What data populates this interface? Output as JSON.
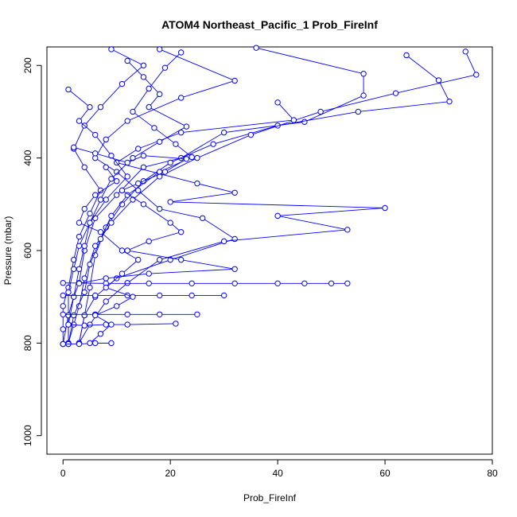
{
  "chart_data": {
    "type": "scatter",
    "title": "ATOM4 Northeast_Pacific_1 Prob_FireInf",
    "xlabel": "Prob_FireInf",
    "ylabel": "Pressure (mbar)",
    "xlim": [
      -3,
      80
    ],
    "ylim": [
      1040,
      160
    ],
    "y_reversed": true,
    "x_ticks": [
      0,
      20,
      40,
      60,
      80
    ],
    "y_ticks": [
      200,
      400,
      600,
      800,
      1000
    ],
    "grid": false,
    "marker": "open-circle",
    "color": "#0000ff",
    "series": [
      {
        "points": [
          [
            36,
            162
          ],
          [
            56,
            218
          ],
          [
            56,
            265
          ],
          [
            45,
            322
          ],
          [
            30,
            345
          ],
          [
            22,
            400
          ],
          [
            15,
            420
          ],
          [
            10,
            480
          ],
          [
            6,
            530
          ],
          [
            4,
            600
          ],
          [
            3,
            670
          ],
          [
            2,
            700
          ],
          [
            1,
            740
          ],
          [
            1,
            800
          ]
        ]
      },
      {
        "points": [
          [
            64,
            178
          ],
          [
            70,
            232
          ],
          [
            72,
            278
          ],
          [
            55,
            300
          ],
          [
            40,
            330
          ],
          [
            28,
            370
          ],
          [
            20,
            410
          ],
          [
            15,
            450
          ],
          [
            11,
            500
          ],
          [
            8,
            550
          ],
          [
            6,
            610
          ],
          [
            5,
            680
          ],
          [
            4,
            740
          ],
          [
            3,
            800
          ]
        ]
      },
      {
        "points": [
          [
            75,
            170
          ],
          [
            77,
            220
          ],
          [
            62,
            260
          ],
          [
            48,
            300
          ],
          [
            35,
            350
          ],
          [
            25,
            400
          ],
          [
            18,
            440
          ],
          [
            13,
            490
          ],
          [
            9,
            540
          ],
          [
            6,
            590
          ],
          [
            4,
            660
          ],
          [
            3,
            720
          ],
          [
            2,
            760
          ],
          [
            1,
            800
          ]
        ]
      },
      {
        "points": [
          [
            18,
            165
          ],
          [
            32,
            233
          ],
          [
            22,
            270
          ],
          [
            12,
            320
          ],
          [
            8,
            360
          ],
          [
            6,
            400
          ],
          [
            10,
            430
          ],
          [
            14,
            470
          ],
          [
            18,
            510
          ],
          [
            26,
            530
          ],
          [
            32,
            575
          ],
          [
            20,
            620
          ],
          [
            10,
            660
          ],
          [
            6,
            700
          ],
          [
            4,
            740
          ],
          [
            3,
            800
          ]
        ]
      },
      {
        "points": [
          [
            40,
            280
          ],
          [
            43,
            318
          ],
          [
            22,
            345
          ],
          [
            14,
            380
          ],
          [
            10,
            410
          ],
          [
            25,
            455
          ],
          [
            32,
            475
          ],
          [
            20,
            495
          ],
          [
            60,
            508
          ],
          [
            40,
            525
          ],
          [
            53,
            555
          ],
          [
            30,
            580
          ],
          [
            18,
            620
          ],
          [
            12,
            670
          ],
          [
            8,
            710
          ],
          [
            5,
            760
          ],
          [
            3,
            800
          ]
        ]
      },
      {
        "points": [
          [
            9,
            165
          ],
          [
            15,
            200
          ],
          [
            11,
            240
          ],
          [
            7,
            290
          ],
          [
            4,
            330
          ],
          [
            2,
            380
          ],
          [
            4,
            420
          ],
          [
            7,
            470
          ],
          [
            5,
            520
          ],
          [
            3,
            570
          ],
          [
            2,
            620
          ],
          [
            1,
            680
          ],
          [
            0,
            720
          ],
          [
            0,
            770
          ],
          [
            0,
            802
          ]
        ]
      },
      {
        "points": [
          [
            22,
            172
          ],
          [
            19,
            205
          ],
          [
            16,
            250
          ],
          [
            13,
            300
          ],
          [
            17,
            335
          ],
          [
            21,
            370
          ],
          [
            24,
            398
          ],
          [
            18,
            430
          ],
          [
            12,
            480
          ],
          [
            9,
            525
          ],
          [
            7,
            575
          ],
          [
            5,
            630
          ],
          [
            4,
            690
          ],
          [
            2,
            740
          ],
          [
            1,
            802
          ]
        ]
      },
      {
        "points": [
          [
            1,
            252
          ],
          [
            5,
            290
          ],
          [
            3,
            320
          ],
          [
            6,
            350
          ],
          [
            9,
            395
          ],
          [
            12,
            440
          ],
          [
            8,
            490
          ],
          [
            5,
            540
          ],
          [
            3,
            590
          ],
          [
            2,
            640
          ],
          [
            1,
            690
          ],
          [
            1,
            740
          ],
          [
            0,
            802
          ]
        ]
      },
      {
        "points": [
          [
            12,
            190
          ],
          [
            15,
            225
          ],
          [
            18,
            262
          ],
          [
            16,
            290
          ],
          [
            23,
            332
          ],
          [
            18,
            365
          ],
          [
            13,
            400
          ],
          [
            9,
            445
          ],
          [
            7,
            490
          ],
          [
            5,
            540
          ],
          [
            4,
            590
          ],
          [
            3,
            640
          ],
          [
            2,
            700
          ],
          [
            1,
            760
          ],
          [
            1,
            802
          ]
        ]
      },
      {
        "points": [
          [
            0,
            670
          ],
          [
            8,
            671
          ],
          [
            16,
            671
          ],
          [
            24,
            671
          ],
          [
            32,
            671
          ],
          [
            40,
            671
          ],
          [
            45,
            671
          ],
          [
            50,
            671
          ],
          [
            53,
            671
          ]
        ]
      },
      {
        "points": [
          [
            0,
            697
          ],
          [
            6,
            697
          ],
          [
            12,
            697
          ],
          [
            18,
            697
          ],
          [
            24,
            697
          ],
          [
            30,
            697
          ]
        ]
      },
      {
        "points": [
          [
            0,
            738
          ],
          [
            6,
            738
          ],
          [
            12,
            738
          ],
          [
            18,
            738
          ],
          [
            25,
            738
          ]
        ]
      },
      {
        "points": [
          [
            1,
            760
          ],
          [
            4,
            762
          ],
          [
            8,
            760
          ],
          [
            12,
            760
          ],
          [
            21,
            758
          ]
        ]
      },
      {
        "points": [
          [
            0,
            802
          ],
          [
            3,
            802
          ],
          [
            6,
            800
          ],
          [
            9,
            800
          ]
        ]
      },
      {
        "points": [
          [
            2,
            377
          ],
          [
            6,
            390
          ],
          [
            12,
            410
          ],
          [
            15,
            395
          ],
          [
            23,
            402
          ],
          [
            19,
            430
          ],
          [
            14,
            455
          ],
          [
            11,
            470
          ],
          [
            15,
            500
          ],
          [
            20,
            540
          ],
          [
            22,
            560
          ],
          [
            16,
            580
          ],
          [
            12,
            600
          ],
          [
            22,
            620
          ],
          [
            32,
            640
          ],
          [
            16,
            650
          ],
          [
            8,
            660
          ],
          [
            3,
            671
          ]
        ]
      },
      {
        "points": [
          [
            8,
            420
          ],
          [
            10,
            450
          ],
          [
            6,
            480
          ],
          [
            4,
            510
          ],
          [
            3,
            540
          ],
          [
            7,
            560
          ],
          [
            11,
            600
          ],
          [
            14,
            620
          ],
          [
            11,
            650
          ],
          [
            8,
            680
          ],
          [
            13,
            700
          ],
          [
            10,
            720
          ],
          [
            6,
            740
          ],
          [
            9,
            760
          ],
          [
            7,
            780
          ],
          [
            5,
            800
          ]
        ]
      }
    ]
  }
}
